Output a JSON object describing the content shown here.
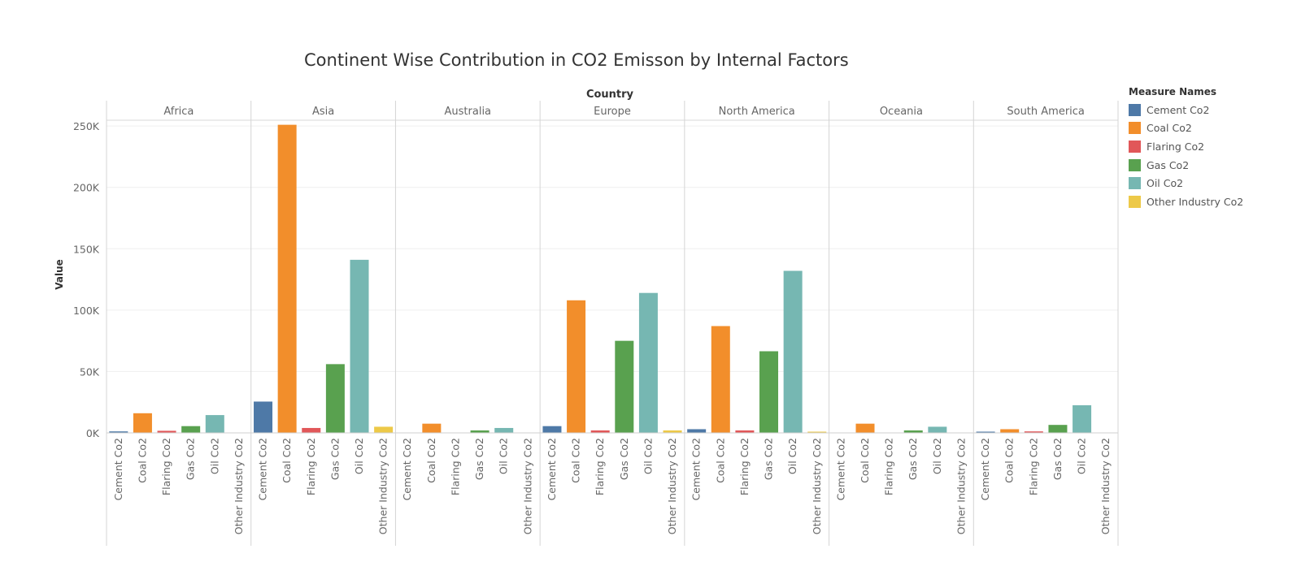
{
  "chart_data": {
    "type": "bar",
    "title": "Continent Wise Contribution in CO2 Emisson by Internal Factors",
    "column_header": "Country",
    "ylabel": "Value",
    "ylim": [
      0,
      262000
    ],
    "yticks": [
      0,
      50000,
      100000,
      150000,
      200000,
      250000
    ],
    "ytick_labels": [
      "0K",
      "50K",
      "100K",
      "150K",
      "200K",
      "250K"
    ],
    "panels": [
      "Africa",
      "Asia",
      "Australia",
      "Europe",
      "North America",
      "Oceania",
      "South America"
    ],
    "categories": [
      "Cement Co2",
      "Coal Co2",
      "Flaring Co2",
      "Gas Co2",
      "Oil Co2",
      "Other Industry Co2"
    ],
    "colors": [
      "#4e79a7",
      "#f28e2b",
      "#e15759",
      "#59a14f",
      "#76b7b2",
      "#edc948"
    ],
    "values": {
      "Africa": [
        1200,
        16000,
        1700,
        5500,
        14500,
        0
      ],
      "Asia": [
        25500,
        251000,
        4000,
        56000,
        141000,
        5000
      ],
      "Australia": [
        0,
        7500,
        0,
        2000,
        4000,
        0
      ],
      "Europe": [
        5500,
        108000,
        2000,
        75000,
        114000,
        2000
      ],
      "North America": [
        3000,
        87000,
        2000,
        66500,
        132000,
        600
      ],
      "Oceania": [
        0,
        7500,
        0,
        2000,
        5000,
        0
      ],
      "South America": [
        1000,
        3000,
        1200,
        6500,
        22500,
        0
      ]
    },
    "legend": {
      "title": "Measure Names",
      "position": "right",
      "items": [
        "Cement Co2",
        "Coal Co2",
        "Flaring Co2",
        "Gas Co2",
        "Oil Co2",
        "Other Industry Co2"
      ]
    },
    "grid": true
  }
}
